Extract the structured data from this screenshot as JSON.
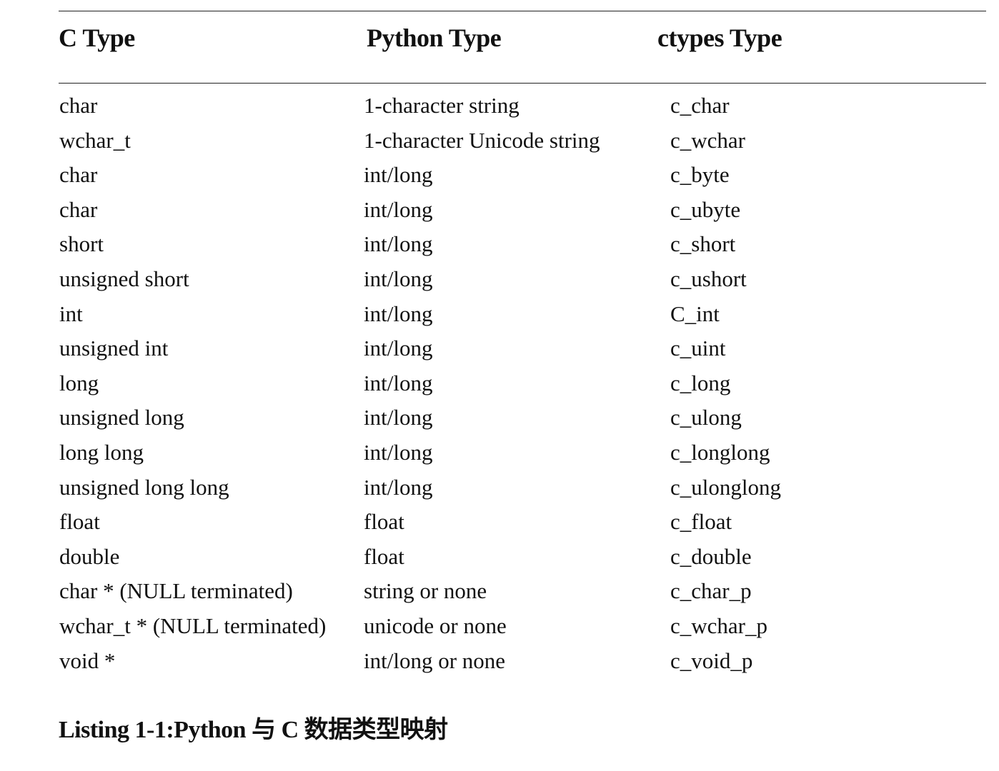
{
  "table": {
    "headers": [
      "C Type",
      "Python Type",
      "ctypes Type"
    ],
    "rows": [
      [
        "char",
        "1-character string",
        "c_char"
      ],
      [
        "wchar_t",
        "1-character Unicode string",
        "c_wchar"
      ],
      [
        "char",
        "int/long",
        "c_byte"
      ],
      [
        "char",
        "int/long",
        "c_ubyte"
      ],
      [
        "short",
        "int/long",
        "c_short"
      ],
      [
        "unsigned short",
        "int/long",
        "c_ushort"
      ],
      [
        "int",
        "int/long",
        "C_int"
      ],
      [
        "unsigned int",
        "int/long",
        "c_uint"
      ],
      [
        "long",
        "int/long",
        "c_long"
      ],
      [
        "unsigned long",
        "int/long",
        "c_ulong"
      ],
      [
        "long long",
        "int/long",
        "c_longlong"
      ],
      [
        "unsigned long long",
        "int/long",
        "c_ulonglong"
      ],
      [
        "float",
        "float",
        "c_float"
      ],
      [
        "double",
        "float",
        "c_double"
      ],
      [
        "char * (NULL terminated)",
        "string or none",
        "c_char_p"
      ],
      [
        "wchar_t * (NULL terminated)",
        "unicode or none",
        "c_wchar_p"
      ],
      [
        "void *",
        "int/long or none",
        "c_void_p"
      ]
    ]
  },
  "caption": "Listing 1-1:Python 与 C 数据类型映射"
}
